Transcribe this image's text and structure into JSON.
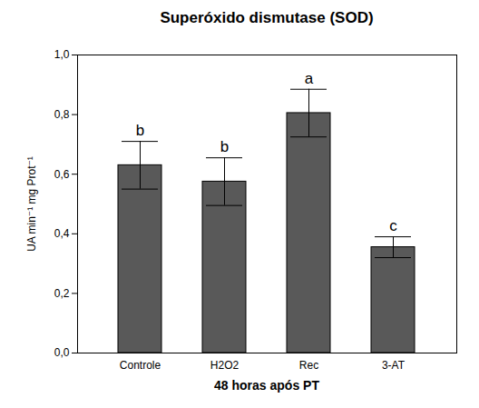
{
  "chart_data": {
    "type": "bar",
    "title": "Superóxido dismutase (SOD)",
    "x_label": "48 horas após PT",
    "y_label": "UA min⁻¹ mg Prot⁻¹",
    "categories": [
      "Controle",
      "H2O2",
      "Rec",
      "3-AT"
    ],
    "values": [
      0.63,
      0.575,
      0.805,
      0.355
    ],
    "errors": [
      0.08,
      0.08,
      0.08,
      0.035
    ],
    "annotations": [
      "b",
      "b",
      "a",
      "c"
    ],
    "color": "#595959",
    "ylim": [
      0,
      1
    ],
    "yticks": [
      {
        "value": 0,
        "label": "0,0"
      },
      {
        "value": 0.2,
        "label": "0,2"
      },
      {
        "value": 0.4,
        "label": "0,4"
      },
      {
        "value": 0.6,
        "label": "0,6"
      },
      {
        "value": 0.8,
        "label": "0,8"
      },
      {
        "value": 1,
        "label": "1,0"
      }
    ],
    "grid": false
  }
}
